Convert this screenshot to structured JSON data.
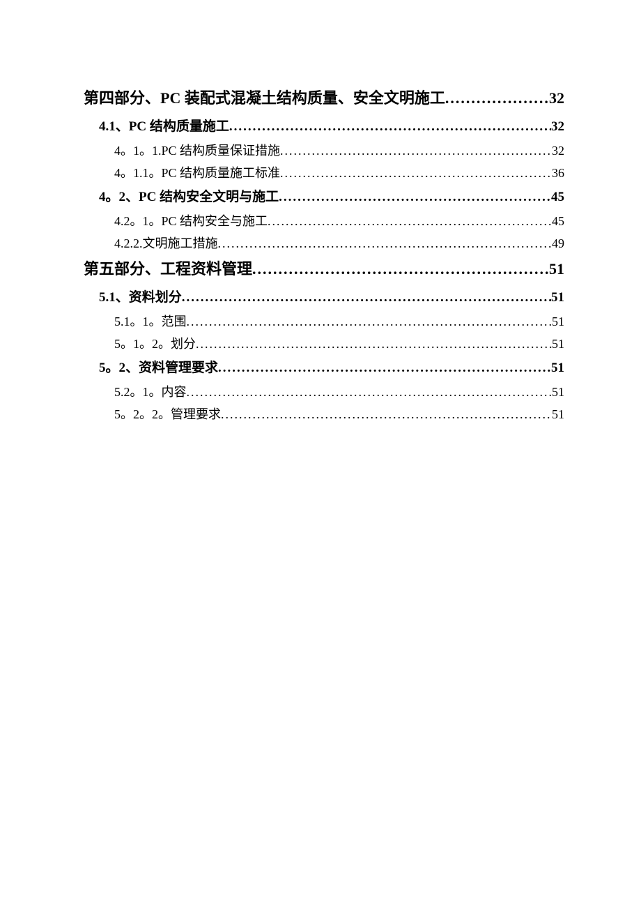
{
  "toc": {
    "entries": [
      {
        "level": 1,
        "label": "第四部分、PC 装配式混凝土结构质量、安全文明施工",
        "page": "32"
      },
      {
        "level": 2,
        "label": "4.1、PC 结构质量施工",
        "page": "32"
      },
      {
        "level": 3,
        "label": "4。1。1.PC 结构质量保证措施",
        "page": "32"
      },
      {
        "level": 3,
        "label": "4。1.1。PC 结构质量施工标准",
        "page": "36"
      },
      {
        "level": 2,
        "label": "4。2、PC 结构安全文明与施工",
        "page": "45"
      },
      {
        "level": 3,
        "label": "4.2。1。PC 结构安全与施工",
        "page": "45"
      },
      {
        "level": 3,
        "label": "4.2.2.文明施工措施",
        "page": "49"
      },
      {
        "level": 1,
        "label": "第五部分、工程资料管理",
        "page": "51"
      },
      {
        "level": 2,
        "label": "5.1、资料划分",
        "page": "51"
      },
      {
        "level": 3,
        "label": "5.1。1。范围",
        "page": "51"
      },
      {
        "level": 3,
        "label": "5。1。2。划分",
        "page": "51"
      },
      {
        "level": 2,
        "label": "5。2、资料管理要求",
        "page": "51"
      },
      {
        "level": 3,
        "label": "5.2。1。内容",
        "page": "51"
      },
      {
        "level": 3,
        "label": "5。2。2。管理要求",
        "page": "51"
      }
    ]
  },
  "style": {
    "page_bg": "#ffffff",
    "text_color": "#000000",
    "lvl1_fontsize": 22,
    "lvl2_fontsize": 19,
    "lvl3_fontsize": 18
  }
}
